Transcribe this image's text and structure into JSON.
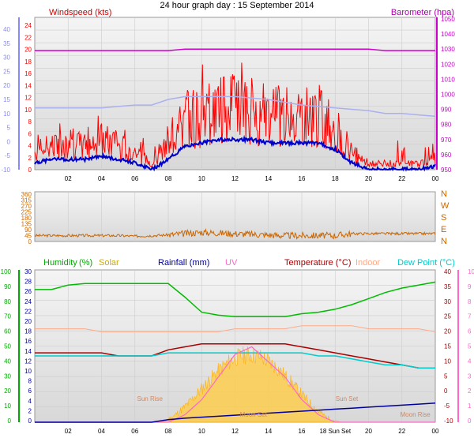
{
  "title": "24 hour graph day : 15 September 2014",
  "colors": {
    "windspeed": "#ff0000",
    "windavg": "#0000cc",
    "barometer": "#cc00cc",
    "gustline": "#aab0ee",
    "direction": "#cc6600",
    "humidity": "#00bb00",
    "solar": "#ffcc44",
    "rainfall": "#000099",
    "uv": "#ff66cc",
    "temperature": "#aa0000",
    "indoor": "#ffaa88",
    "dewpoint": "#00cccc",
    "axis_blue": "#8888ff",
    "axis_pink": "#ff66cc",
    "axis_green": "#00aa00",
    "axis_red": "#aa0000",
    "axis_orange": "#cc6600"
  },
  "panels": {
    "wind": {
      "label_left": "Windspeed (kts)",
      "label_right": "Barometer (hpa)",
      "left_ticks_red": [
        "24",
        "22",
        "20",
        "18",
        "16",
        "14",
        "12",
        "10",
        "8",
        "6",
        "4",
        "2",
        "0"
      ],
      "left_ticks_blue": [
        "40",
        "35",
        "30",
        "25",
        "20",
        "15",
        "10",
        "5",
        "0",
        "-5",
        "-10"
      ],
      "right_ticks": [
        "1050",
        "1040",
        "1030",
        "1020",
        "1010",
        "1000",
        "990",
        "980",
        "970",
        "960",
        "950"
      ]
    },
    "direction": {
      "left_ticks": [
        "360",
        "315",
        "270",
        "225",
        "180",
        "135",
        "90",
        "45",
        "0"
      ],
      "right_labels": [
        "N",
        "W",
        "S",
        "E",
        "N"
      ]
    },
    "temp": {
      "labels": {
        "humidity": "Humidity",
        "humidity_unit": "(%)",
        "solar": "Solar",
        "rainfall": "Rainfall (mm)",
        "uv": "UV",
        "temperature": "Temperature (°C)",
        "indoor": "Indoor",
        "dewpoint": "Dew Point (°C)"
      },
      "left_ticks_green": [
        "100",
        "90",
        "80",
        "70",
        "60",
        "50",
        "40",
        "30",
        "20",
        "10",
        "0"
      ],
      "left_ticks_blue": [
        "30",
        "28",
        "26",
        "24",
        "22",
        "20",
        "18",
        "16",
        "14",
        "12",
        "10",
        "8",
        "6",
        "4",
        "2",
        "0"
      ],
      "right_ticks_red": [
        "40",
        "35",
        "30",
        "25",
        "20",
        "15",
        "10",
        "5",
        "0",
        "-5",
        "-10"
      ],
      "right_ticks_pink": [
        "10",
        "9",
        "8",
        "7",
        "6",
        "5",
        "4",
        "3",
        "2",
        "1",
        "0"
      ],
      "annotations": [
        "Sun Rise",
        "Moon Set",
        "Sun Set",
        "Moon Rise"
      ],
      "sun_labels": [
        "Sun Set"
      ]
    }
  },
  "x_ticks": [
    "02",
    "04",
    "06",
    "08",
    "10",
    "12",
    "14",
    "16",
    "18",
    "20",
    "22",
    "00"
  ],
  "x_ticks_bottom": [
    "02",
    "04",
    "06",
    "08",
    "10",
    "12",
    "14",
    "16",
    "18 Sun Set",
    "20",
    "22",
    "00"
  ],
  "chart_data": [
    {
      "type": "line",
      "title": "",
      "xlabel": "",
      "ylabel": "Windspeed (kts)",
      "x": [
        0,
        1,
        2,
        3,
        4,
        5,
        6,
        7,
        8,
        9,
        10,
        11,
        12,
        13,
        14,
        15,
        16,
        17,
        18,
        19,
        20,
        21,
        22,
        23,
        24
      ],
      "series": [
        {
          "name": "Windspeed (kts)",
          "values": [
            3,
            4,
            4,
            4,
            5,
            4,
            3,
            1,
            4,
            8,
            9,
            10,
            10,
            10,
            9,
            9,
            9,
            9,
            7,
            3,
            1,
            1,
            1,
            1,
            2
          ]
        },
        {
          "name": "Barometer (hpa)",
          "values": [
            1029,
            1029,
            1029,
            1029,
            1029,
            1029,
            1029,
            1029,
            1029,
            1030,
            1030,
            1030,
            1030,
            1030,
            1030,
            1030,
            1030,
            1030,
            1030,
            1030,
            1030,
            1029,
            1029,
            1029,
            1029
          ]
        }
      ],
      "ylim": [
        0,
        24
      ],
      "y2lim": [
        950,
        1050
      ]
    },
    {
      "type": "scatter",
      "ylabel": "Direction",
      "series": [
        {
          "name": "Direction",
          "values": [
            45,
            45,
            45,
            45,
            45,
            45,
            40,
            45,
            50,
            60,
            70,
            65,
            60,
            55,
            50,
            45,
            45,
            45,
            45,
            60,
            60,
            60,
            60,
            60,
            60
          ]
        }
      ],
      "ylim": [
        0,
        360
      ]
    },
    {
      "type": "line",
      "series": [
        {
          "name": "Humidity",
          "values": [
            88,
            88,
            91,
            92,
            92,
            92,
            92,
            92,
            92,
            83,
            73,
            71,
            70,
            70,
            70,
            70,
            72,
            73,
            75,
            78,
            82,
            86,
            89,
            91,
            93
          ]
        },
        {
          "name": "Temperature (°C)",
          "values": [
            13,
            13,
            13,
            13,
            13,
            12,
            12,
            12,
            14,
            15,
            16,
            16,
            16,
            16,
            16,
            16,
            15,
            14,
            13,
            12,
            11,
            10,
            9,
            8,
            8
          ]
        },
        {
          "name": "Dew Point (°C)",
          "values": [
            12,
            12,
            12,
            12,
            12,
            12,
            12,
            12,
            13,
            13,
            13,
            13,
            13,
            13,
            13,
            13,
            13,
            12,
            12,
            11,
            10,
            9,
            9,
            8,
            8
          ]
        },
        {
          "name": "Indoor",
          "values": [
            21,
            21,
            21,
            21,
            20,
            20,
            20,
            20,
            20,
            20,
            20,
            20,
            21,
            21,
            21,
            21,
            22,
            22,
            22,
            22,
            21,
            21,
            21,
            21,
            20
          ]
        },
        {
          "name": "Rainfall (mm)",
          "values": [
            0,
            0,
            0,
            0,
            0,
            0,
            0,
            0,
            0.5,
            0.8,
            1,
            1.2,
            1.4,
            1.6,
            1.8,
            2,
            2.2,
            2.4,
            2.6,
            2.8,
            3,
            3.2,
            3.4,
            3.6,
            3.8
          ]
        },
        {
          "name": "UV",
          "values": [
            0,
            0,
            0,
            0,
            0,
            0,
            0,
            0,
            0,
            0.5,
            1.5,
            3,
            4.5,
            5,
            4,
            3,
            1.5,
            0.5,
            0,
            0,
            0,
            0,
            0,
            0,
            0
          ]
        }
      ],
      "ylim": [
        0,
        100
      ]
    }
  ]
}
